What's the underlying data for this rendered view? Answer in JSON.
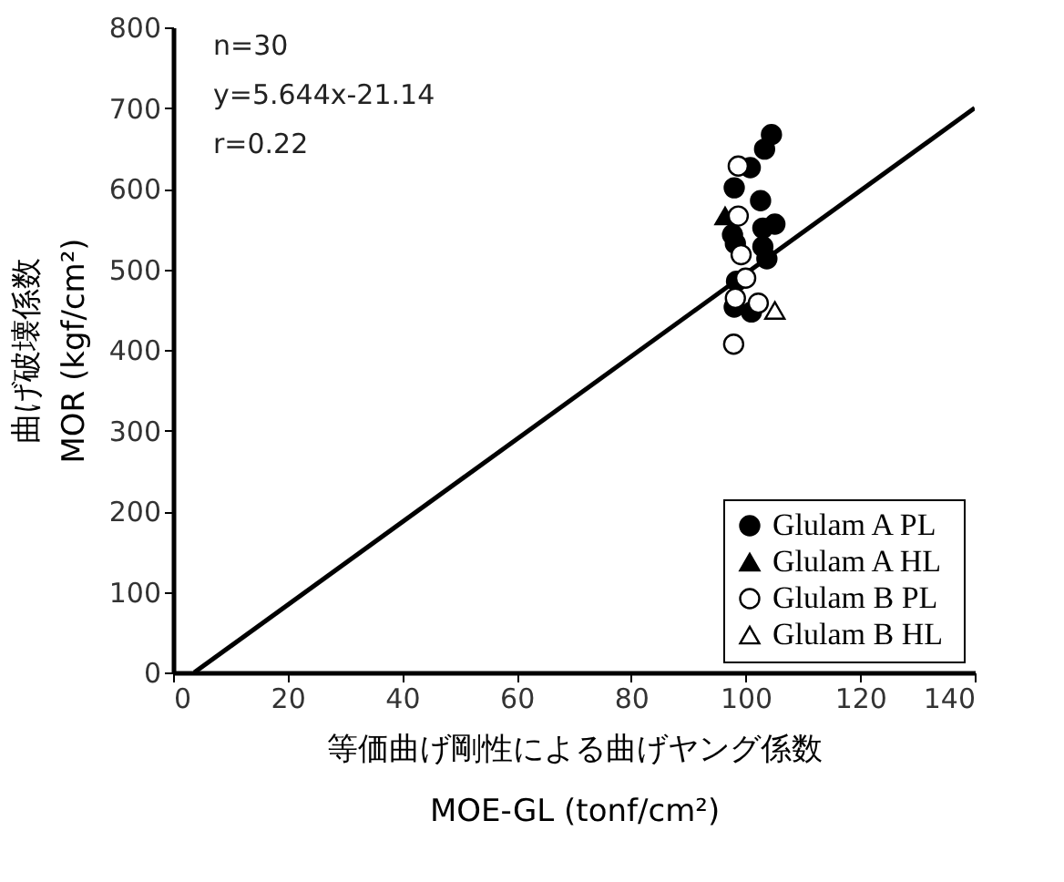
{
  "chart_data": {
    "type": "scatter",
    "xlabel": "等価曲げ剛性による曲げヤング係数\nMOE-GL (tonf/cm²)",
    "ylabel": "曲げ破壊係数\nMOR (kgf/cm²)",
    "xlim": [
      0,
      140
    ],
    "xticks": [
      0,
      20,
      40,
      60,
      80,
      100,
      120,
      140
    ],
    "ylim": [
      0,
      800
    ],
    "yticks": [
      0,
      100,
      200,
      300,
      400,
      500,
      600,
      700,
      800
    ],
    "grid": false,
    "legend": "bottom right",
    "annotations": [
      "n=30",
      "y=5.644x-21.14",
      "r=0.22"
    ],
    "series": [
      {
        "name": "Glulam  A PL",
        "color": "#000000",
        "marker": "circle",
        "x": [
          104.5,
          103.3,
          100.8,
          98.0,
          102.6,
          105.1,
          103.0,
          97.7,
          98.2,
          103.0,
          103.7,
          98.4,
          98.0,
          101.0
        ],
        "values": [
          667,
          649,
          626,
          601,
          585,
          556,
          551,
          543,
          532,
          528,
          513,
          485,
          453,
          447
        ]
      },
      {
        "name": "Glulam  A HL",
        "color": "#000000",
        "marker": "triangle",
        "x": [
          96.4
        ],
        "values": [
          566
        ]
      },
      {
        "name": "Glulam  B PL",
        "color": "#ffffff",
        "marker": "circle",
        "x": [
          98.7,
          98.7,
          99.2,
          100.0,
          98.2,
          102.2,
          97.9
        ],
        "values": [
          628,
          566,
          518,
          489,
          464,
          458,
          407
        ]
      },
      {
        "name": "Glulam  B HL",
        "color": "#ffffff",
        "marker": "triangle",
        "x": [
          105.1
        ],
        "values": [
          449
        ]
      },
      {
        "type": "line",
        "color": "#000000",
        "line_style": "solid",
        "x": [
          3.7,
          140
        ],
        "values": [
          0,
          700
        ]
      }
    ]
  }
}
